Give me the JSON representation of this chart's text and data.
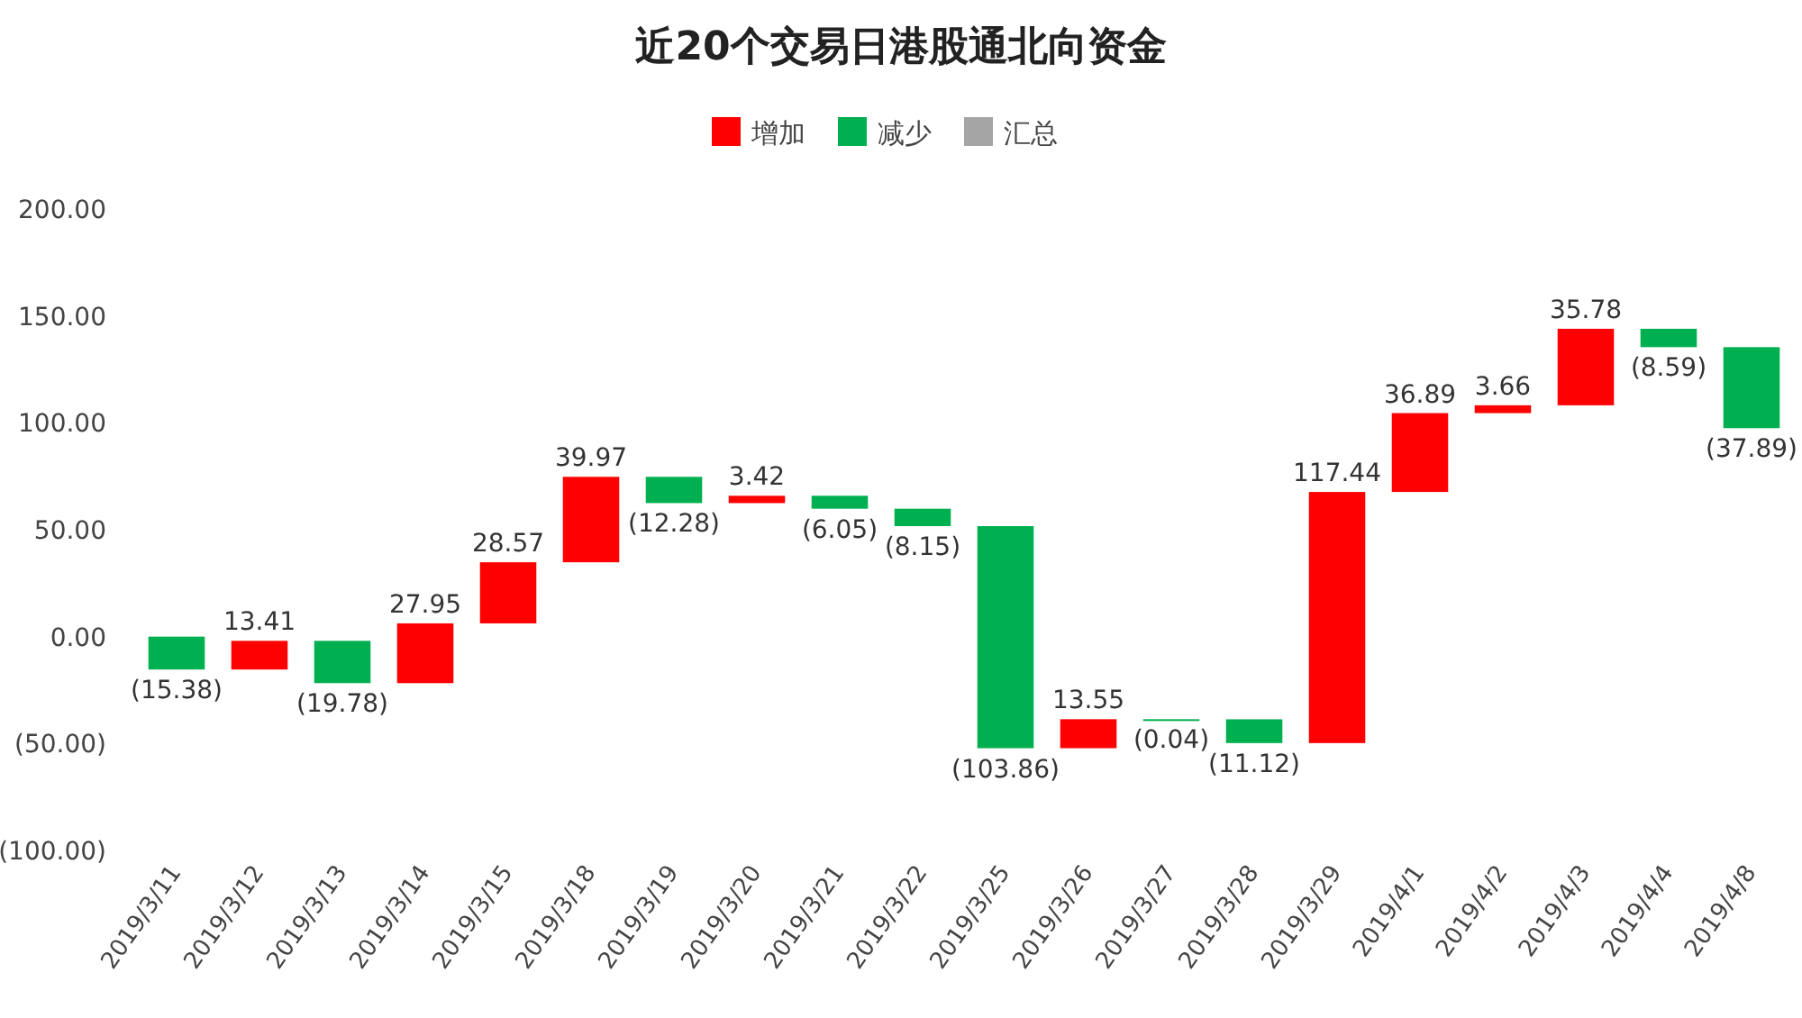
{
  "chart_data": {
    "type": "bar",
    "title": "近20个交易日港股通北向资金",
    "categories": [
      "2019/3/11",
      "2019/3/12",
      "2019/3/13",
      "2019/3/14",
      "2019/3/15",
      "2019/3/18",
      "2019/3/19",
      "2019/3/20",
      "2019/3/21",
      "2019/3/22",
      "2019/3/25",
      "2019/3/26",
      "2019/3/27",
      "2019/3/28",
      "2019/3/29",
      "2019/4/1",
      "2019/4/2",
      "2019/4/3",
      "2019/4/4",
      "2019/4/8"
    ],
    "series": [
      {
        "name": "增加",
        "color": "#ff0000",
        "base": [
          null,
          -15.38,
          null,
          -21.75,
          6.2,
          34.77,
          null,
          62.46,
          null,
          null,
          null,
          -52.18,
          null,
          null,
          -49.79,
          67.65,
          104.54,
          108.2,
          null,
          null
        ],
        "values": [
          null,
          13.41,
          null,
          27.95,
          28.57,
          39.97,
          null,
          3.42,
          null,
          null,
          null,
          13.55,
          null,
          null,
          117.44,
          36.89,
          3.66,
          35.78,
          null,
          null
        ],
        "value_labels": [
          null,
          "13.41",
          null,
          "27.95",
          "28.57",
          "39.97",
          null,
          "3.42",
          null,
          null,
          null,
          "13.55",
          null,
          null,
          "117.44",
          "36.89",
          "3.66",
          "35.78",
          null,
          null
        ]
      },
      {
        "name": "减少",
        "color": "#00b050",
        "base": [
          0,
          null,
          -1.97,
          null,
          null,
          null,
          74.74,
          null,
          65.88,
          59.83,
          51.68,
          null,
          -38.63,
          -38.67,
          null,
          null,
          null,
          null,
          143.98,
          135.39
        ],
        "values": [
          -15.38,
          null,
          -19.78,
          null,
          null,
          null,
          -12.28,
          null,
          -6.05,
          -8.15,
          -103.86,
          null,
          -0.04,
          -11.12,
          null,
          null,
          null,
          null,
          -8.59,
          -37.89
        ],
        "value_labels": [
          "(15.38)",
          null,
          "(19.78)",
          null,
          null,
          null,
          "(12.28)",
          null,
          "(6.05)",
          "(8.15)",
          "(103.86)",
          null,
          "(0.04)",
          "(11.12)",
          null,
          null,
          null,
          null,
          "(8.59)",
          "(37.89)"
        ]
      },
      {
        "name": "汇总",
        "color": "#a5a5a5",
        "values": [
          null,
          null,
          null,
          null,
          null,
          null,
          null,
          null,
          null,
          null,
          null,
          null,
          null,
          null,
          null,
          null,
          null,
          null,
          null,
          null
        ]
      }
    ],
    "ylim": [
      -100,
      200
    ],
    "yticks": [
      {
        "value": -100,
        "label": "(100.00)"
      },
      {
        "value": -50,
        "label": "(50.00)"
      },
      {
        "value": 0,
        "label": "0.00"
      },
      {
        "value": 50,
        "label": "50.00"
      },
      {
        "value": 100,
        "label": "100.00"
      },
      {
        "value": 150,
        "label": "150.00"
      },
      {
        "value": 200,
        "label": "200.00"
      }
    ],
    "legend": "top"
  }
}
